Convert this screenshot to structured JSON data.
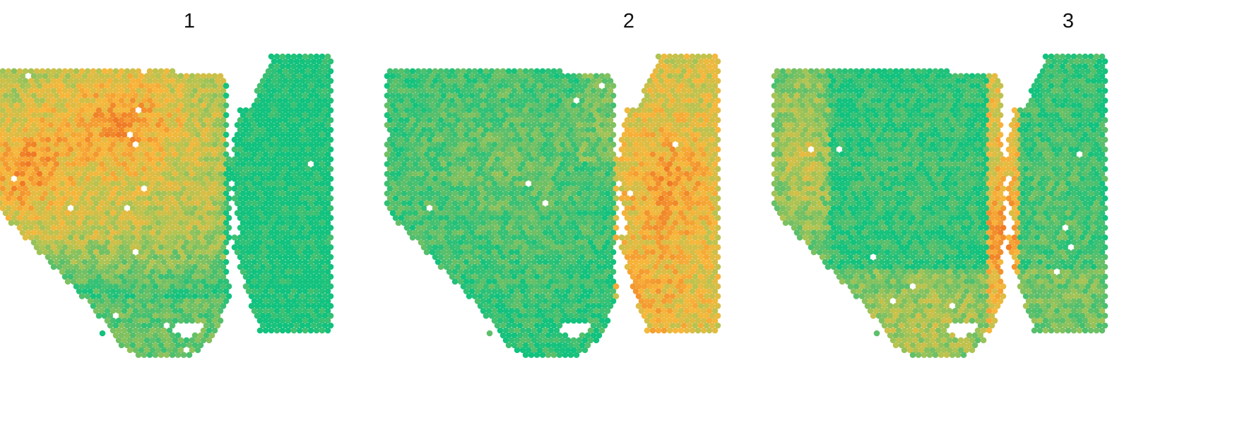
{
  "panels": [
    {
      "title": "1"
    },
    {
      "title": "2"
    },
    {
      "title": "3"
    }
  ],
  "colors": {
    "background": "#ffffff",
    "low": "#12c27e",
    "mid_low": "#5ebf6a",
    "mid": "#b5c451",
    "mid_high": "#f8b73b",
    "high": "#ef7a25"
  }
}
